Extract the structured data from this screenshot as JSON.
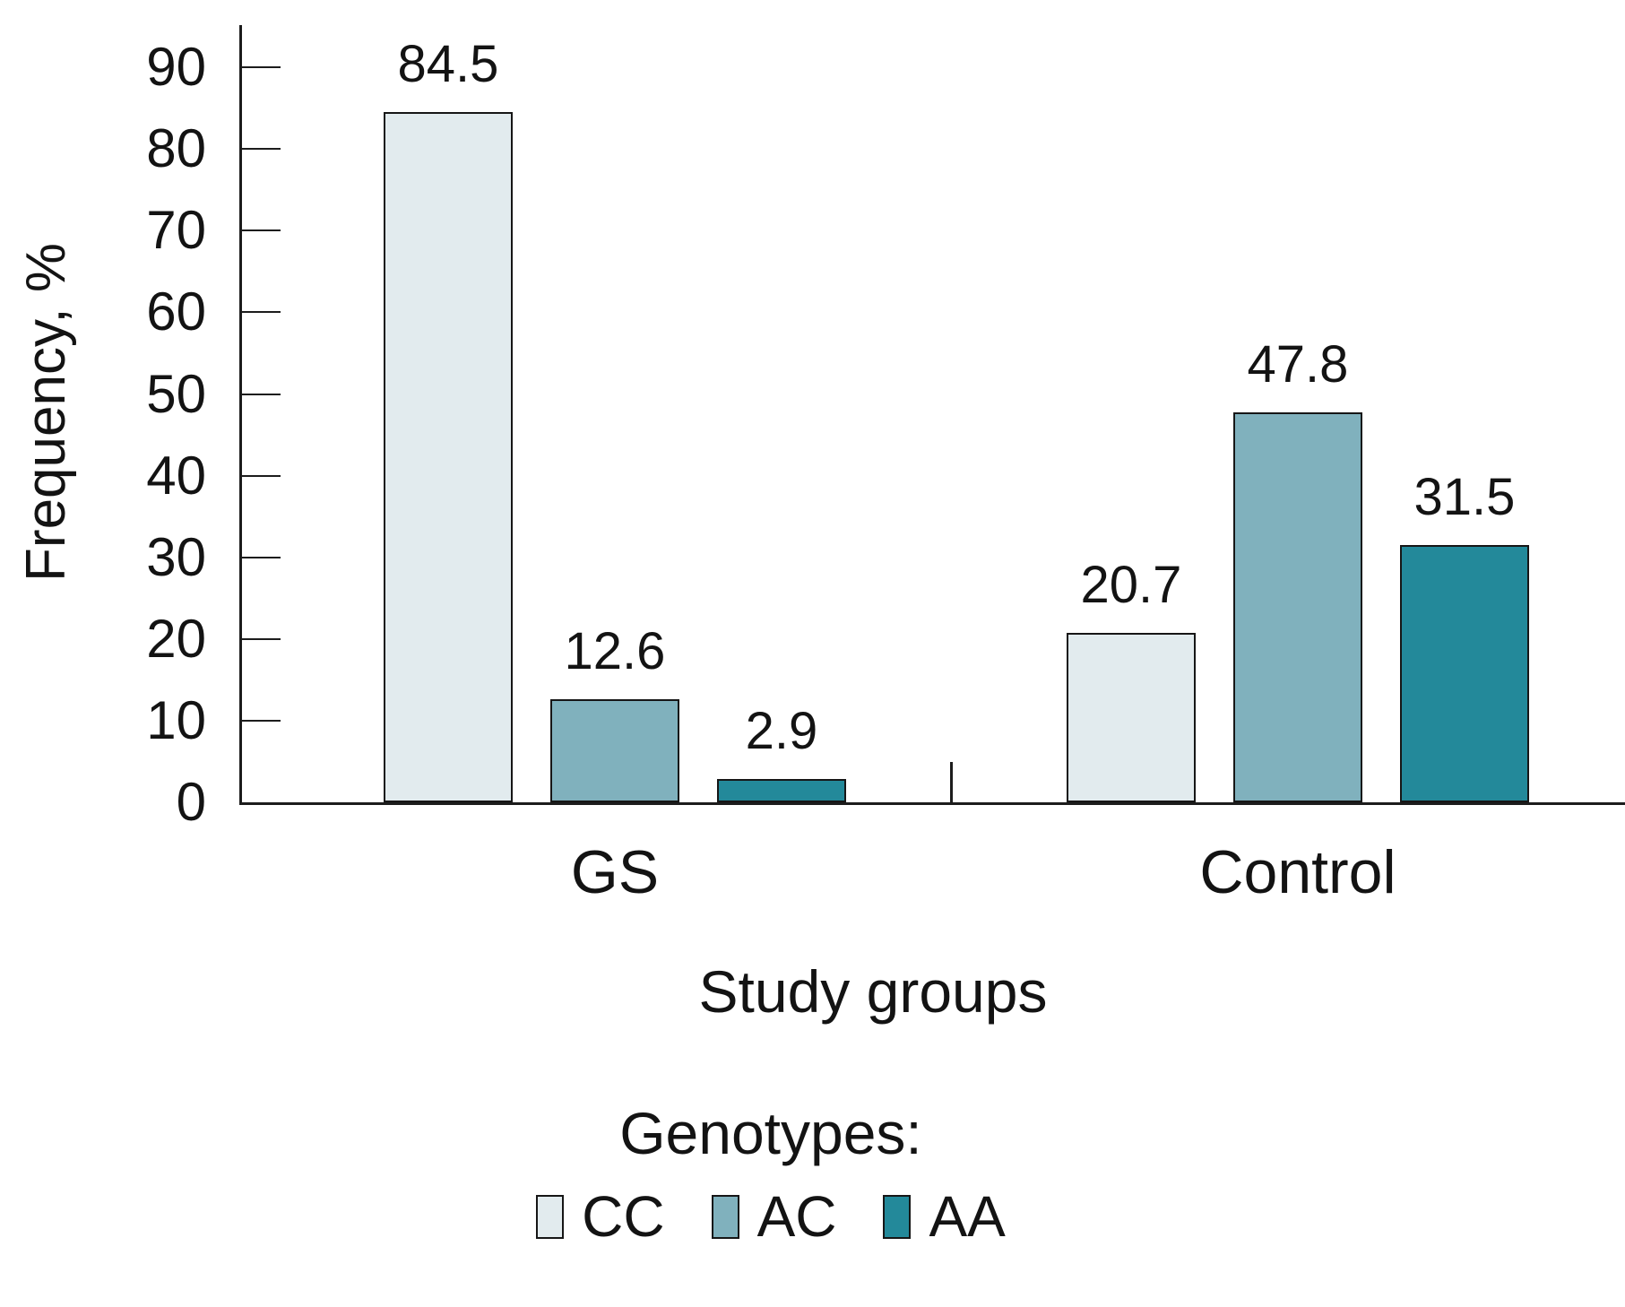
{
  "chart_data": {
    "type": "bar",
    "title": "",
    "ylabel": "Frequency, %",
    "xlabel": "Study groups",
    "legend_title": "Genotypes:",
    "legend_position": "bottom",
    "categories": [
      "GS",
      "Control"
    ],
    "series": [
      {
        "name": "CC",
        "color": "#e2ebee",
        "values": [
          84.5,
          20.7
        ]
      },
      {
        "name": "AC",
        "color": "#80b1bd",
        "values": [
          12.6,
          47.8
        ]
      },
      {
        "name": "AA",
        "color": "#23899a",
        "values": [
          2.9,
          31.5
        ]
      }
    ],
    "value_labels": [
      [
        "84.5",
        "12.6",
        "2.9"
      ],
      [
        "20.7",
        "47.8",
        "31.5"
      ]
    ],
    "ylim": [
      0,
      90
    ],
    "yticks": [
      0,
      10,
      20,
      30,
      40,
      50,
      60,
      70,
      80,
      90
    ],
    "grid": false,
    "value_labels_shown": true
  }
}
